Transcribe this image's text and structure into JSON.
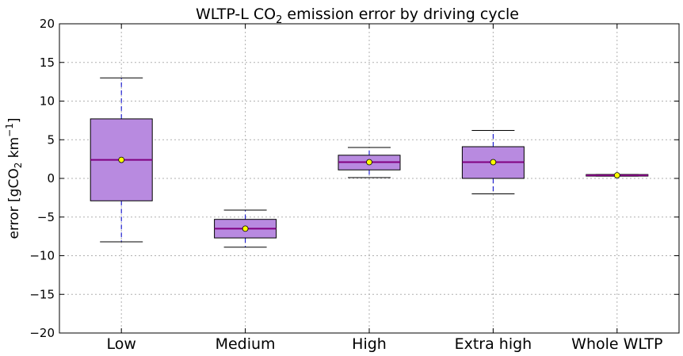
{
  "chart_data": {
    "type": "box",
    "title": {
      "prefix": "WLTP-L CO",
      "subscript": "2",
      "suffix": " emission error by driving cycle"
    },
    "ylabel": {
      "prefix": "error [gCO",
      "subscript": "2",
      "middle": " km",
      "superscript": "−1",
      "suffix": "]"
    },
    "xlabel": "",
    "ylim": [
      -20,
      20
    ],
    "yticks": [
      -20,
      -15,
      -10,
      -5,
      0,
      5,
      10,
      15,
      20
    ],
    "grid": true,
    "categories": [
      "Low",
      "Medium",
      "High",
      "Extra high",
      "Whole WLTP"
    ],
    "boxes": [
      {
        "category": "Low",
        "whisker_low": -8.2,
        "q1": -2.9,
        "median": 2.4,
        "q3": 7.7,
        "whisker_high": 13.0,
        "mean": 2.4
      },
      {
        "category": "Medium",
        "whisker_low": -8.9,
        "q1": -7.7,
        "median": -6.5,
        "q3": -5.3,
        "whisker_high": -4.1,
        "mean": -6.5
      },
      {
        "category": "High",
        "whisker_low": 0.1,
        "q1": 1.1,
        "median": 2.1,
        "q3": 3.0,
        "whisker_high": 4.0,
        "mean": 2.1
      },
      {
        "category": "Extra high",
        "whisker_low": -2.0,
        "q1": 0.0,
        "median": 2.1,
        "q3": 4.1,
        "whisker_high": 6.2,
        "mean": 2.1
      },
      {
        "category": "Whole WLTP",
        "whisker_low": 0.3,
        "q1": 0.3,
        "median": 0.4,
        "q3": 0.5,
        "whisker_high": 0.5,
        "mean": 0.4
      }
    ],
    "colors": {
      "box_fill": "#b88ae0",
      "median": "#800080",
      "mean_marker": "#ffff00",
      "whisker": "#0000cc",
      "grid": "#b0b0b0"
    }
  }
}
